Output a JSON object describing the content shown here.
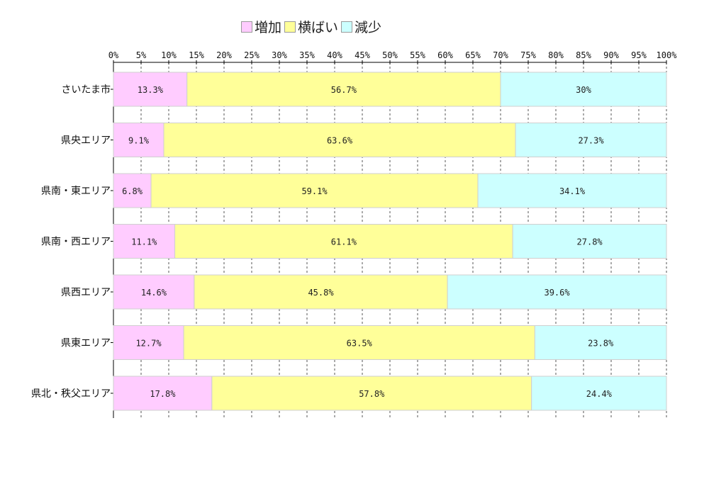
{
  "chart_data": {
    "type": "bar",
    "orientation": "horizontal",
    "stacked": true,
    "normalized": true,
    "categories": [
      "さいたま市",
      "県央エリア",
      "県南・東エリア",
      "県南・西エリア",
      "県西エリア",
      "県東エリア",
      "県北・秩父エリア"
    ],
    "series": [
      {
        "name": "増加",
        "color": "#ffccff",
        "values": [
          13.3,
          9.1,
          6.8,
          11.1,
          14.6,
          12.7,
          17.8
        ],
        "labels": [
          "13.3%",
          "9.1%",
          "6.8%",
          "11.1%",
          "14.6%",
          "12.7%",
          "17.8%"
        ]
      },
      {
        "name": "横ばい",
        "color": "#ffff99",
        "values": [
          56.7,
          63.6,
          59.1,
          61.1,
          45.8,
          63.5,
          57.8
        ],
        "labels": [
          "56.7%",
          "63.6%",
          "59.1%",
          "61.1%",
          "45.8%",
          "63.5%",
          "57.8%"
        ]
      },
      {
        "name": "減少",
        "color": "#ccffff",
        "values": [
          30,
          27.3,
          34.1,
          27.8,
          39.6,
          23.8,
          24.4
        ],
        "labels": [
          "30%",
          "27.3%",
          "34.1%",
          "27.8%",
          "39.6%",
          "23.8%",
          "24.4%"
        ]
      }
    ],
    "xlim": [
      0,
      100
    ],
    "xticks": [
      "0%",
      "5%",
      "10%",
      "15%",
      "20%",
      "25%",
      "30%",
      "35%",
      "40%",
      "45%",
      "50%",
      "55%",
      "60%",
      "65%",
      "70%",
      "75%",
      "80%",
      "85%",
      "90%",
      "95%",
      "100%"
    ],
    "grid": "vertical dashed",
    "legend_position": "top",
    "title": "",
    "xlabel": "",
    "ylabel": ""
  }
}
